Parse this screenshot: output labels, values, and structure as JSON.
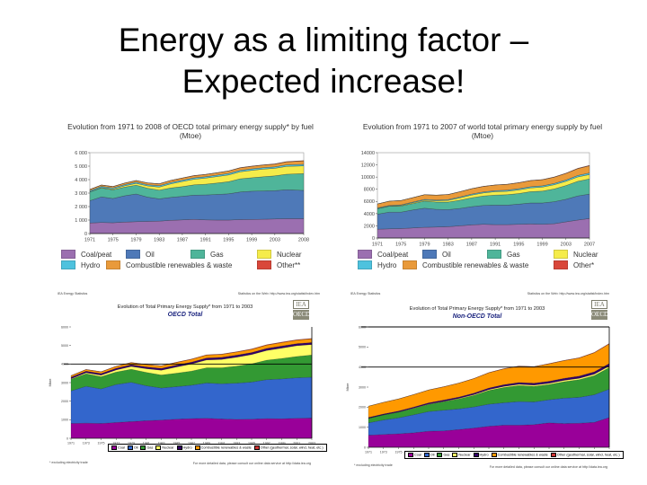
{
  "slide": {
    "title_line1": "Energy as a limiting factor –",
    "title_line2": "Expected increase!"
  },
  "colors": {
    "tl_coal": "#9b6fb0",
    "tl_oil": "#4e79b8",
    "tl_gas": "#4fb59a",
    "tl_nuclear": "#f5ec4a",
    "tl_hydro": "#4ec2de",
    "tl_renew": "#e99a3a",
    "tl_other": "#d9473a",
    "b_coal": "#990099",
    "b_oil": "#3366cc",
    "b_gas": "#339933",
    "b_nuclear": "#ffff66",
    "b_hydro": "#330066",
    "b_renew": "#ff9900",
    "b_other": "#cc3333"
  },
  "chart_data": [
    {
      "id": "oecd_1971_2008",
      "type": "area",
      "stacked": true,
      "title": "Evolution from 1971 to 2008 of OECD total primary energy supply* by fuel (Mtoe)",
      "xlabel": "",
      "ylabel": "",
      "ylim": [
        0,
        6000
      ],
      "yticks": [
        "0",
        "1 000",
        "2 000",
        "3 000",
        "4 000",
        "5 000",
        "6 000"
      ],
      "xticks": [
        "1971",
        "1975",
        "1979",
        "1983",
        "1987",
        "1991",
        "1995",
        "1999",
        "2003",
        "2008"
      ],
      "x": [
        1971,
        1973,
        1975,
        1977,
        1979,
        1981,
        1983,
        1985,
        1987,
        1989,
        1991,
        1993,
        1995,
        1997,
        1999,
        2001,
        2003,
        2005,
        2008
      ],
      "legend_position": "bottom",
      "series": [
        {
          "name": "Coal/peat",
          "color_key": "tl_coal",
          "values": [
            780,
            820,
            800,
            850,
            880,
            900,
            920,
            980,
            1010,
            1050,
            1010,
            1000,
            1000,
            1030,
            1040,
            1060,
            1080,
            1100,
            1100
          ]
        },
        {
          "name": "Oil",
          "color_key": "tl_oil",
          "values": [
            1650,
            1900,
            1800,
            1950,
            2050,
            1800,
            1650,
            1700,
            1750,
            1800,
            1850,
            1900,
            1950,
            2050,
            2100,
            2100,
            2100,
            2150,
            2100
          ]
        },
        {
          "name": "Gas",
          "color_key": "tl_gas",
          "values": [
            650,
            660,
            640,
            640,
            660,
            660,
            650,
            700,
            720,
            760,
            800,
            850,
            900,
            980,
            1000,
            1050,
            1100,
            1150,
            1250
          ]
        },
        {
          "name": "Nuclear",
          "color_key": "tl_nuclear",
          "values": [
            20,
            40,
            60,
            100,
            130,
            170,
            230,
            310,
            380,
            420,
            450,
            480,
            500,
            520,
            550,
            570,
            560,
            580,
            570
          ]
        },
        {
          "name": "Hydro",
          "color_key": "tl_hydro",
          "values": [
            80,
            82,
            85,
            88,
            90,
            92,
            95,
            98,
            100,
            100,
            102,
            105,
            108,
            110,
            110,
            108,
            110,
            112,
            115
          ]
        },
        {
          "name": "Combustible renewables & waste",
          "color_key": "tl_renew",
          "values": [
            90,
            95,
            100,
            110,
            120,
            130,
            140,
            150,
            155,
            160,
            165,
            170,
            180,
            185,
            190,
            195,
            200,
            220,
            250
          ]
        },
        {
          "name": "Other**",
          "color_key": "tl_other",
          "values": [
            10,
            10,
            10,
            10,
            10,
            10,
            12,
            12,
            14,
            15,
            15,
            16,
            18,
            18,
            20,
            20,
            22,
            25,
            30
          ]
        }
      ]
    },
    {
      "id": "world_1971_2007",
      "type": "area",
      "stacked": true,
      "title": "Evolution from 1971 to 2007 of world total primary energy supply by fuel (Mtoe)",
      "xlabel": "",
      "ylabel": "",
      "ylim": [
        0,
        14000
      ],
      "yticks": [
        "0",
        "2000",
        "4000",
        "6000",
        "8000",
        "10000",
        "12000",
        "14000"
      ],
      "xticks": [
        "1971",
        "1975",
        "1979",
        "1983",
        "1987",
        "1991",
        "1995",
        "1999",
        "2003",
        "2007"
      ],
      "x": [
        1971,
        1973,
        1975,
        1977,
        1979,
        1981,
        1983,
        1985,
        1987,
        1989,
        1991,
        1993,
        1995,
        1997,
        1999,
        2001,
        2003,
        2005,
        2007
      ],
      "legend_position": "bottom",
      "series": [
        {
          "name": "Coal/peat",
          "color_key": "tl_coal",
          "values": [
            1450,
            1500,
            1550,
            1650,
            1750,
            1800,
            1850,
            2000,
            2150,
            2250,
            2200,
            2200,
            2250,
            2300,
            2250,
            2350,
            2650,
            2950,
            3200
          ]
        },
        {
          "name": "Oil",
          "color_key": "tl_oil",
          "values": [
            2450,
            2750,
            2700,
            2950,
            3150,
            2900,
            2800,
            2850,
            3000,
            3100,
            3200,
            3200,
            3300,
            3450,
            3500,
            3600,
            3700,
            3950,
            4000
          ]
        },
        {
          "name": "Gas",
          "color_key": "tl_gas",
          "values": [
            900,
            950,
            1000,
            1050,
            1150,
            1200,
            1250,
            1350,
            1450,
            1550,
            1650,
            1700,
            1750,
            1850,
            1950,
            2100,
            2250,
            2400,
            2500
          ]
        },
        {
          "name": "Nuclear",
          "color_key": "tl_nuclear",
          "values": [
            30,
            50,
            80,
            120,
            160,
            200,
            270,
            380,
            450,
            500,
            550,
            570,
            600,
            620,
            650,
            690,
            700,
            720,
            710
          ]
        },
        {
          "name": "Hydro",
          "color_key": "tl_hydro",
          "values": [
            100,
            105,
            115,
            120,
            130,
            135,
            140,
            150,
            155,
            160,
            170,
            180,
            190,
            200,
            205,
            210,
            220,
            240,
            260
          ]
        },
        {
          "name": "Combustible renewables & waste",
          "color_key": "tl_renew",
          "values": [
            650,
            680,
            700,
            730,
            760,
            790,
            820,
            860,
            880,
            900,
            920,
            950,
            980,
            1000,
            1010,
            1030,
            1080,
            1120,
            1180
          ]
        },
        {
          "name": "Other*",
          "color_key": "tl_other",
          "values": [
            10,
            10,
            12,
            12,
            14,
            15,
            16,
            18,
            20,
            22,
            25,
            28,
            30,
            32,
            35,
            40,
            45,
            55,
            70
          ]
        }
      ]
    },
    {
      "id": "oecd_total_1971_2003",
      "type": "area",
      "stacked": true,
      "title": "Evolution of Total Primary Energy Supply* from 1971 to 2003",
      "subtitle": "OECD Total",
      "xlabel": "",
      "ylabel": "Mtoe",
      "ylim": [
        0,
        6000
      ],
      "yticks": [
        "0",
        "1000",
        "2000",
        "3000",
        "4000",
        "5000",
        "6000"
      ],
      "xticks": [
        "1971",
        "1973",
        "1975",
        "1977",
        "1979",
        "1981",
        "1983",
        "1985",
        "1987",
        "1989",
        "1991",
        "1993",
        "1995",
        "1997",
        "1999",
        "2001",
        "2003"
      ],
      "x": [
        1971,
        1973,
        1975,
        1977,
        1979,
        1981,
        1983,
        1985,
        1987,
        1989,
        1991,
        1993,
        1995,
        1997,
        1999,
        2001,
        2003
      ],
      "legend_position": "bottom",
      "series": [
        {
          "name": "Coal",
          "color_key": "b_coal",
          "values": [
            800,
            820,
            800,
            850,
            900,
            950,
            980,
            1030,
            1060,
            1080,
            1040,
            1020,
            1030,
            1060,
            1050,
            1080,
            1090
          ]
        },
        {
          "name": "Oil",
          "color_key": "b_oil",
          "values": [
            1750,
            1980,
            1860,
            2050,
            2120,
            1880,
            1730,
            1750,
            1800,
            1900,
            1900,
            1950,
            2000,
            2100,
            2150,
            2180,
            2200
          ]
        },
        {
          "name": "Gas",
          "color_key": "b_gas",
          "values": [
            630,
            680,
            660,
            670,
            700,
            720,
            700,
            730,
            760,
            820,
            860,
            920,
            980,
            1050,
            1100,
            1150,
            1200
          ]
        },
        {
          "name": "Nuclear",
          "color_key": "b_nuclear",
          "values": [
            30,
            50,
            80,
            110,
            150,
            200,
            260,
            330,
            380,
            420,
            450,
            480,
            500,
            520,
            560,
            580,
            560
          ]
        },
        {
          "name": "Hydro",
          "color_key": "b_hydro",
          "values": [
            80,
            85,
            90,
            92,
            95,
            97,
            100,
            102,
            104,
            106,
            108,
            110,
            112,
            115,
            115,
            112,
            110
          ]
        },
        {
          "name": "Combustible renewables & waste",
          "color_key": "b_renew",
          "values": [
            80,
            85,
            90,
            100,
            110,
            120,
            130,
            140,
            150,
            155,
            160,
            165,
            170,
            175,
            180,
            185,
            195
          ]
        },
        {
          "name": "Other (geothermal, solar, wind, heat, etc.)",
          "color_key": "b_other",
          "values": [
            10,
            10,
            10,
            12,
            12,
            14,
            15,
            16,
            18,
            18,
            20,
            20,
            22,
            22,
            25,
            25,
            28
          ]
        }
      ]
    },
    {
      "id": "non_oecd_total_1971_2003",
      "type": "area",
      "stacked": true,
      "title": "Evolution of Total Primary Energy Supply* from 1971 to 2003",
      "subtitle": "Non-OECD Total",
      "xlabel": "",
      "ylabel": "Mtoe",
      "ylim": [
        0,
        6000
      ],
      "yticks": [
        "0",
        "1000",
        "2000",
        "3000",
        "4000",
        "5000",
        "6000"
      ],
      "xticks": [
        "1971",
        "1973",
        "1975",
        "1977",
        "1979",
        "1981",
        "1983",
        "1985",
        "1987",
        "1989",
        "1991",
        "1993",
        "1995",
        "1997",
        "1999",
        "2001",
        "2003"
      ],
      "x": [
        1971,
        1973,
        1975,
        1977,
        1979,
        1981,
        1983,
        1985,
        1987,
        1989,
        1991,
        1993,
        1995,
        1997,
        1999,
        2001,
        2003
      ],
      "legend_position": "bottom",
      "series": [
        {
          "name": "Coal",
          "color_key": "b_coal",
          "values": [
            600,
            640,
            670,
            720,
            800,
            820,
            880,
            960,
            1050,
            1100,
            1100,
            1130,
            1220,
            1180,
            1200,
            1240,
            1480
          ]
        },
        {
          "name": "Oil",
          "color_key": "b_oil",
          "values": [
            620,
            720,
            800,
            900,
            980,
            1030,
            1030,
            1050,
            1100,
            1120,
            1180,
            1130,
            1150,
            1270,
            1290,
            1380,
            1420
          ]
        },
        {
          "name": "Gas",
          "color_key": "b_gas",
          "values": [
            220,
            250,
            280,
            320,
            360,
            420,
            500,
            580,
            680,
            760,
            800,
            780,
            760,
            820,
            880,
            950,
            1070
          ]
        },
        {
          "name": "Nuclear",
          "color_key": "b_nuclear",
          "values": [
            5,
            5,
            8,
            10,
            15,
            20,
            25,
            35,
            45,
            55,
            60,
            60,
            60,
            65,
            70,
            75,
            80
          ]
        },
        {
          "name": "Hydro",
          "color_key": "b_hydro",
          "values": [
            40,
            45,
            50,
            55,
            60,
            65,
            70,
            75,
            80,
            85,
            90,
            95,
            100,
            105,
            110,
            115,
            125
          ]
        },
        {
          "name": "Combustible renewables & waste",
          "color_key": "b_renew",
          "values": [
            560,
            580,
            600,
            620,
            640,
            660,
            690,
            720,
            760,
            790,
            810,
            820,
            870,
            880,
            900,
            950,
            980
          ]
        },
        {
          "name": "Other (geothermal, solar, wind, heat, etc.)",
          "color_key": "b_other",
          "values": [
            5,
            5,
            5,
            6,
            6,
            7,
            8,
            9,
            10,
            11,
            12,
            12,
            14,
            15,
            16,
            18,
            20
          ]
        }
      ]
    }
  ],
  "panels": {
    "tl": {
      "legend": [
        "Coal/peat",
        "Oil",
        "Gas",
        "Nuclear",
        "Hydro",
        "Combustible renewables & waste",
        "Other**"
      ]
    },
    "tr": {
      "legend": [
        "Coal/peat",
        "Oil",
        "Gas",
        "Nuclear",
        "Hydro",
        "Combustible renewables & waste",
        "Other*"
      ]
    },
    "bl": {
      "header_left": "IEA Energy Statistics",
      "header_right": "Statistics on the Web: http://www.iea.org/statist/index.htm",
      "footer_left": "* excluding electricity trade",
      "footer_right": "For more detailed data, please consult our online data service at http://data.iea.org",
      "logo_top": "IEA",
      "logo_bottom": "OECD",
      "legend": [
        "Coal",
        "Oil",
        "Gas",
        "Nuclear",
        "Hydro",
        "Combustible renewables & waste",
        "Other (geothermal, solar, wind, heat, etc.)"
      ]
    },
    "br": {
      "header_left": "IEA Energy Statistics",
      "header_right": "Statistics on the Web: http://www.iea.org/statist/index.htm",
      "footer_left": "* excluding electricity trade",
      "footer_right": "For more detailed data, please consult our online data service at http://data.iea.org",
      "logo_top": "IEA",
      "logo_bottom": "OECD",
      "legend": [
        "Coal",
        "Oil",
        "Gas",
        "Nuclear",
        "Hydro",
        "Combustible renewables & waste",
        "Other (geothermal, solar, wind, heat, etc.)"
      ]
    }
  }
}
